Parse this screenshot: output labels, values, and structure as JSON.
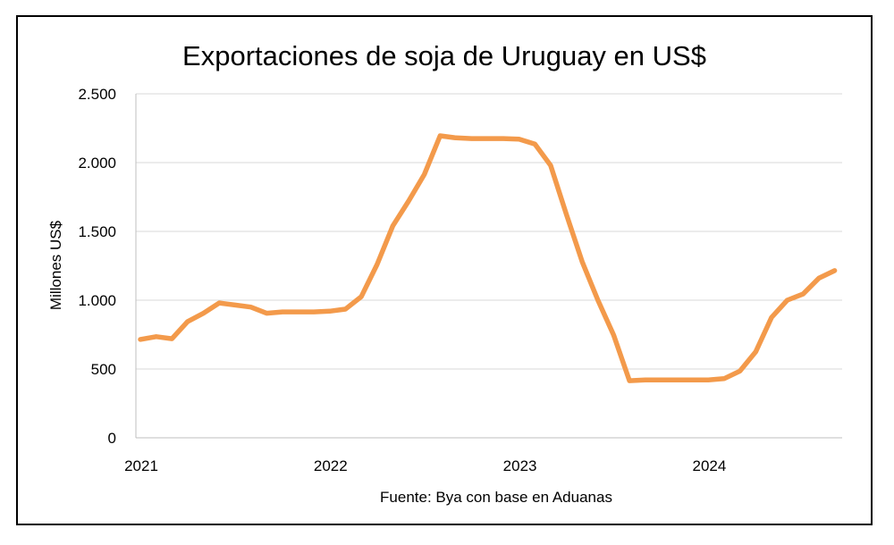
{
  "chart_data": {
    "type": "line",
    "title": "Exportaciones de soja de Uruguay en US$",
    "xlabel": "",
    "ylabel": "Millones US$",
    "source": "Fuente: Bya con base en Aduanas",
    "ylim": [
      0,
      2500
    ],
    "yticks": [
      0,
      500,
      1000,
      1500,
      2000,
      2500
    ],
    "ytick_labels": [
      "0",
      "500",
      "1.000",
      "1.500",
      "2.000",
      "2.500"
    ],
    "xtick_labels": [
      "2021",
      "2022",
      "2023",
      "2024"
    ],
    "xtick_values": [
      "2021-01",
      "2022-01",
      "2023-01",
      "2024-01"
    ],
    "grid": true,
    "line_color": "#F39A4B",
    "x": [
      "2021-01",
      "2021-02",
      "2021-03",
      "2021-04",
      "2021-05",
      "2021-06",
      "2021-07",
      "2021-08",
      "2021-09",
      "2021-10",
      "2021-11",
      "2021-12",
      "2022-01",
      "2022-02",
      "2022-03",
      "2022-04",
      "2022-05",
      "2022-06",
      "2022-07",
      "2022-08",
      "2022-09",
      "2022-10",
      "2022-11",
      "2022-12",
      "2023-01",
      "2023-02",
      "2023-03",
      "2023-04",
      "2023-05",
      "2023-06",
      "2023-07",
      "2023-08",
      "2023-09",
      "2023-10",
      "2023-11",
      "2023-12",
      "2024-01",
      "2024-02",
      "2024-03",
      "2024-04",
      "2024-05",
      "2024-06",
      "2024-07",
      "2024-08",
      "2024-09"
    ],
    "values": [
      715,
      735,
      720,
      845,
      905,
      980,
      965,
      950,
      905,
      915,
      915,
      915,
      920,
      935,
      1025,
      1260,
      1540,
      1720,
      1915,
      2195,
      2180,
      2175,
      2175,
      2175,
      2170,
      2135,
      1980,
      1625,
      1280,
      1000,
      745,
      415,
      420,
      420,
      420,
      420,
      420,
      430,
      485,
      625,
      875,
      1000,
      1045,
      1160,
      1215
    ]
  }
}
